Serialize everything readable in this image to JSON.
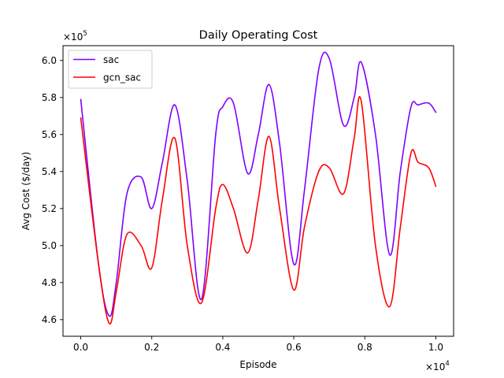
{
  "chart_data": {
    "type": "line",
    "title": "Daily Operating Cost",
    "xlabel": "Episode",
    "ylabel": "Avg Cost ($/day)",
    "x_offset_text": "×10^4",
    "y_offset_text": "×10^5",
    "x_multiplier_base": "×10",
    "x_multiplier_exp": "4",
    "y_multiplier_base": "×10",
    "y_multiplier_exp": "5",
    "xlim": [
      -0.05,
      1.05
    ],
    "ylim": [
      4.51,
      6.08
    ],
    "xticks": [
      0.0,
      0.2,
      0.4,
      0.6,
      0.8,
      1.0
    ],
    "xtick_labels": [
      "0.0",
      "0.2",
      "0.4",
      "0.6",
      "0.8",
      "1.0"
    ],
    "yticks": [
      4.6,
      4.8,
      5.0,
      5.2,
      5.4,
      5.6,
      5.8,
      6.0
    ],
    "ytick_labels": [
      "4.6",
      "4.8",
      "5.0",
      "5.2",
      "5.4",
      "5.6",
      "5.8",
      "6.0"
    ],
    "legend_position": "upper-left",
    "grid": false,
    "x": [
      0.0,
      0.05,
      0.08,
      0.1,
      0.13,
      0.17,
      0.2,
      0.23,
      0.265,
      0.3,
      0.34,
      0.38,
      0.4,
      0.43,
      0.47,
      0.5,
      0.53,
      0.56,
      0.6,
      0.63,
      0.67,
      0.7,
      0.74,
      0.77,
      0.79,
      0.83,
      0.87,
      0.9,
      0.93,
      0.95,
      0.98,
      1.0
    ],
    "series": [
      {
        "name": "sac",
        "color": "#8000ff",
        "values": [
          5.79,
          4.9,
          4.62,
          4.8,
          5.28,
          5.37,
          5.2,
          5.45,
          5.76,
          5.35,
          4.71,
          5.6,
          5.75,
          5.77,
          5.39,
          5.6,
          5.87,
          5.55,
          4.9,
          5.3,
          5.95,
          6.01,
          5.65,
          5.8,
          5.99,
          5.6,
          4.95,
          5.4,
          5.75,
          5.76,
          5.77,
          5.72
        ]
      },
      {
        "name": "gcn_sac",
        "color": "#ff0000",
        "values": [
          5.69,
          4.9,
          4.58,
          4.75,
          5.06,
          5.0,
          4.88,
          5.25,
          5.58,
          5.0,
          4.69,
          5.2,
          5.33,
          5.2,
          4.96,
          5.25,
          5.59,
          5.2,
          4.76,
          5.1,
          5.4,
          5.42,
          5.28,
          5.58,
          5.78,
          5.0,
          4.67,
          5.1,
          5.5,
          5.45,
          5.42,
          5.32
        ]
      }
    ]
  }
}
